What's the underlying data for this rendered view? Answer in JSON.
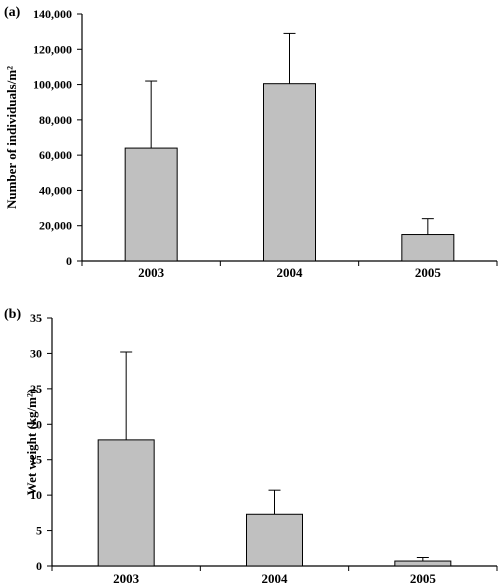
{
  "chart_data": [
    {
      "type": "bar",
      "panel_label": "(a)",
      "categories": [
        "2003",
        "2004",
        "2005"
      ],
      "values": [
        64000,
        100500,
        15000
      ],
      "error_plus": [
        38000,
        28500,
        9000
      ],
      "ylabel": "Number of individuals/m²",
      "ylim": [
        0,
        140000
      ],
      "yticks": [
        0,
        20000,
        40000,
        60000,
        80000,
        100000,
        120000,
        140000
      ],
      "ytick_labels": [
        "0",
        "20,000",
        "40,000",
        "60,000",
        "80,000",
        "100,000",
        "120,000",
        "140,000"
      ],
      "bar_color": "#c0c0c0",
      "grid": false
    },
    {
      "type": "bar",
      "panel_label": "(b)",
      "categories": [
        "2003",
        "2004",
        "2005"
      ],
      "values": [
        17.8,
        7.3,
        0.7
      ],
      "error_plus": [
        12.4,
        3.4,
        0.5
      ],
      "ylabel": "Wet weight (kg/m²)",
      "ylim": [
        0,
        35
      ],
      "yticks": [
        0,
        5,
        10,
        15,
        20,
        25,
        30,
        35
      ],
      "ytick_labels": [
        "0",
        "5",
        "10",
        "15",
        "20",
        "25",
        "30",
        "35"
      ],
      "bar_color": "#c0c0c0",
      "grid": false
    }
  ]
}
